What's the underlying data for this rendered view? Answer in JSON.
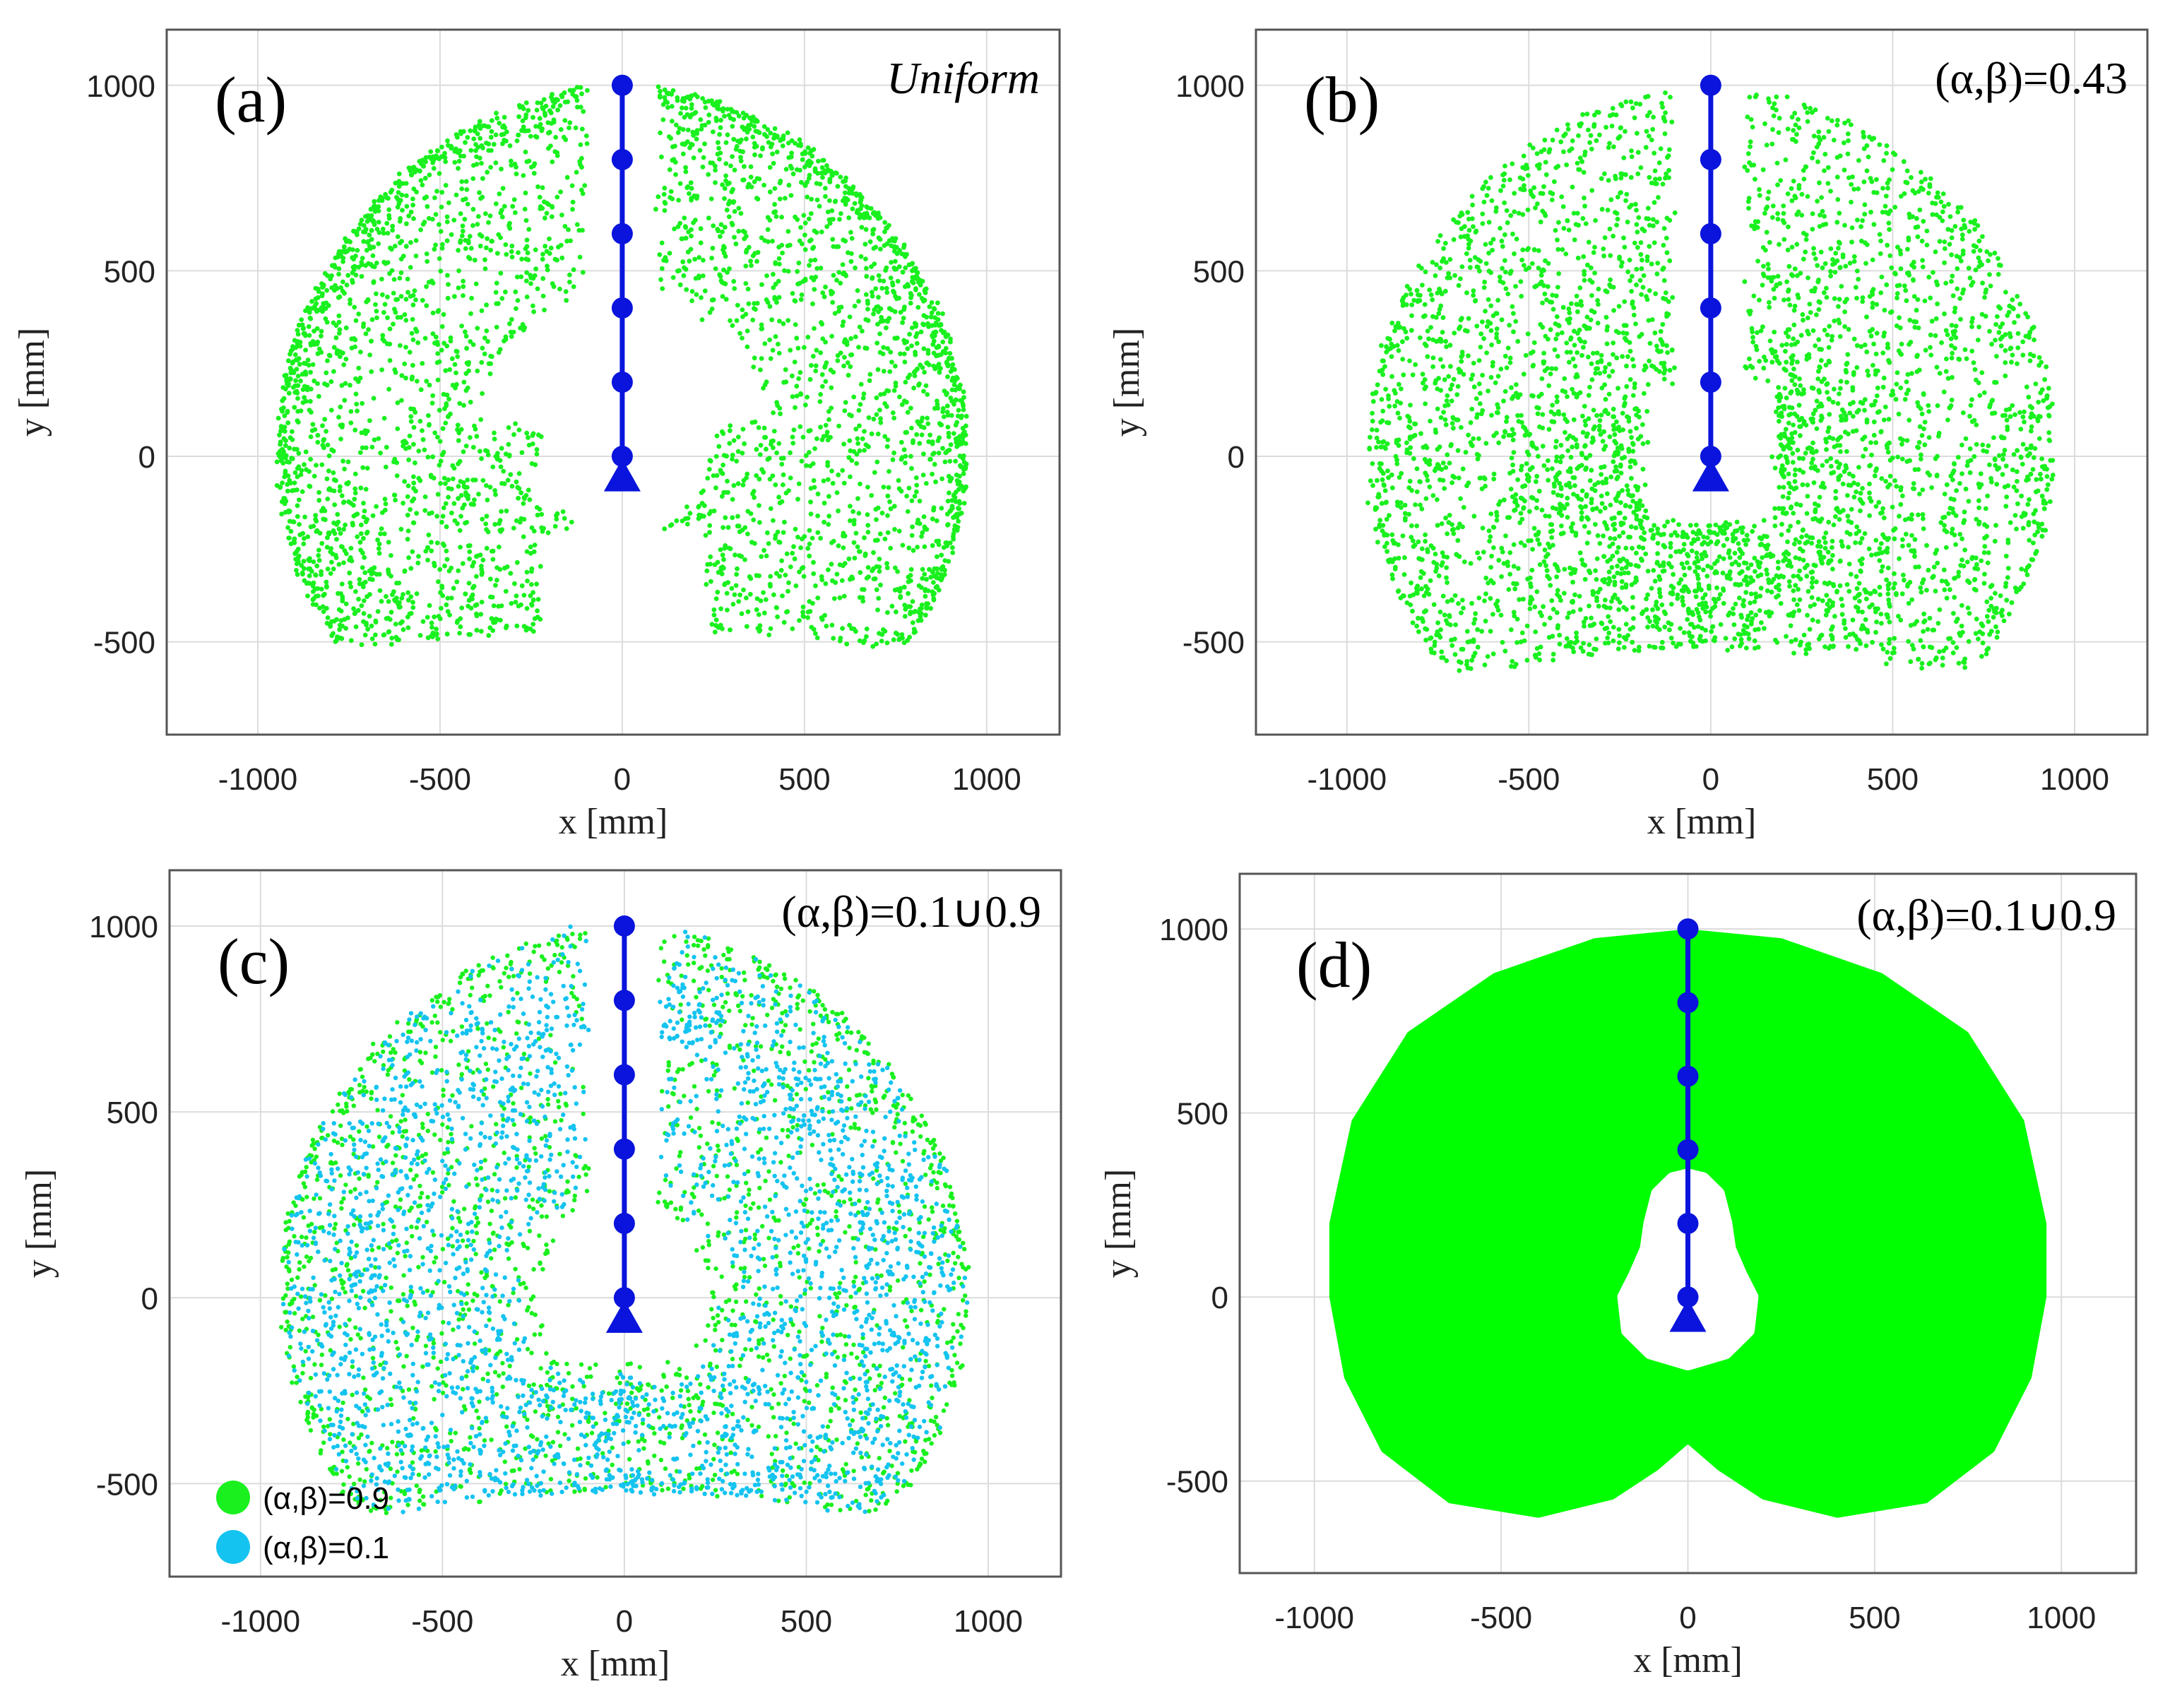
{
  "chart_data": [
    {
      "type": "scatter",
      "panel_label": "(a)",
      "annotation": "Uniform",
      "xlabel": "x [mm]",
      "ylabel": "y [mm]",
      "xlim": [
        -1250,
        1200
      ],
      "ylim": [
        -750,
        1150
      ],
      "xticks": [
        -1000,
        -500,
        0,
        500,
        1000
      ],
      "yticks": [
        -500,
        0,
        500,
        1000
      ],
      "xtick_labels": [
        "-1000",
        "-500",
        "0",
        "500",
        "1000"
      ],
      "ytick_labels": [
        "-500",
        "0",
        "500",
        "1000"
      ],
      "grid": true,
      "workspace": {
        "style": "scatter",
        "color": "#19f01e",
        "density": "dense-outer-rim",
        "bottom_extent": -520
      },
      "arm": {
        "color": "#0a14dc",
        "x": [
          0,
          0,
          0,
          0,
          0,
          0
        ],
        "y": [
          0,
          200,
          400,
          600,
          800,
          1000
        ],
        "base": {
          "x": 0,
          "y": -60,
          "marker": "triangle"
        }
      }
    },
    {
      "type": "scatter",
      "panel_label": "(b)",
      "annotation": "(α,β)=0.43",
      "xlabel": "x [mm]",
      "ylabel": "y [mm]",
      "xlim": [
        -1250,
        1200
      ],
      "ylim": [
        -750,
        1150
      ],
      "xticks": [
        -1000,
        -500,
        0,
        500,
        1000
      ],
      "yticks": [
        -500,
        0,
        500,
        1000
      ],
      "xtick_labels": [
        "-1000",
        "-500",
        "0",
        "500",
        "1000"
      ],
      "ytick_labels": [
        "-500",
        "0",
        "500",
        "1000"
      ],
      "grid": true,
      "workspace": {
        "style": "scatter",
        "color": "#19f01e",
        "density": "cardioid",
        "bottom_extent": -580
      },
      "arm": {
        "color": "#0a14dc",
        "x": [
          0,
          0,
          0,
          0,
          0,
          0
        ],
        "y": [
          0,
          200,
          400,
          600,
          800,
          1000
        ],
        "base": {
          "x": 0,
          "y": -60,
          "marker": "triangle"
        }
      }
    },
    {
      "type": "scatter",
      "panel_label": "(c)",
      "annotation": "(α,β)=0.1∪0.9",
      "xlabel": "x [mm]",
      "ylabel": "y [mm]",
      "xlim": [
        -1250,
        1200
      ],
      "ylim": [
        -750,
        1150
      ],
      "xticks": [
        -1000,
        -500,
        0,
        500,
        1000
      ],
      "yticks": [
        -500,
        0,
        500,
        1000
      ],
      "xtick_labels": [
        "-1000",
        "-500",
        "0",
        "500",
        "1000"
      ],
      "ytick_labels": [
        "-500",
        "0",
        "500",
        "1000"
      ],
      "grid": true,
      "series": [
        {
          "name": "(α,β)=0.9",
          "color": "#19f01e"
        },
        {
          "name": "(α,β)=0.1",
          "color": "#14c3f0"
        }
      ],
      "legend_position": "bottom-left",
      "arm": {
        "color": "#0a14dc",
        "x": [
          0,
          0,
          0,
          0,
          0,
          0
        ],
        "y": [
          0,
          200,
          400,
          600,
          800,
          1000
        ],
        "base": {
          "x": 0,
          "y": -60,
          "marker": "triangle"
        }
      }
    },
    {
      "type": "area",
      "panel_label": "(d)",
      "annotation": "(α,β)=0.1∪0.9",
      "xlabel": "x [mm]",
      "ylabel": "y [mm]",
      "xlim": [
        -1200,
        1200
      ],
      "ylim": [
        -750,
        1150
      ],
      "xticks": [
        -1000,
        -500,
        0,
        500,
        1000
      ],
      "yticks": [
        -500,
        0,
        500,
        1000
      ],
      "xtick_labels": [
        "-1000",
        "-500",
        "0",
        "500",
        "1000"
      ],
      "ytick_labels": [
        "-500",
        "0",
        "500",
        "1000"
      ],
      "grid": true,
      "workspace": {
        "style": "filled",
        "color": "#00ff00",
        "bottom_extent": -600
      },
      "arm": {
        "color": "#0a14dc",
        "x": [
          0,
          0,
          0,
          0,
          0,
          0
        ],
        "y": [
          0,
          200,
          400,
          600,
          800,
          1000
        ],
        "base": {
          "x": 0,
          "y": -60,
          "marker": "triangle"
        }
      }
    }
  ]
}
